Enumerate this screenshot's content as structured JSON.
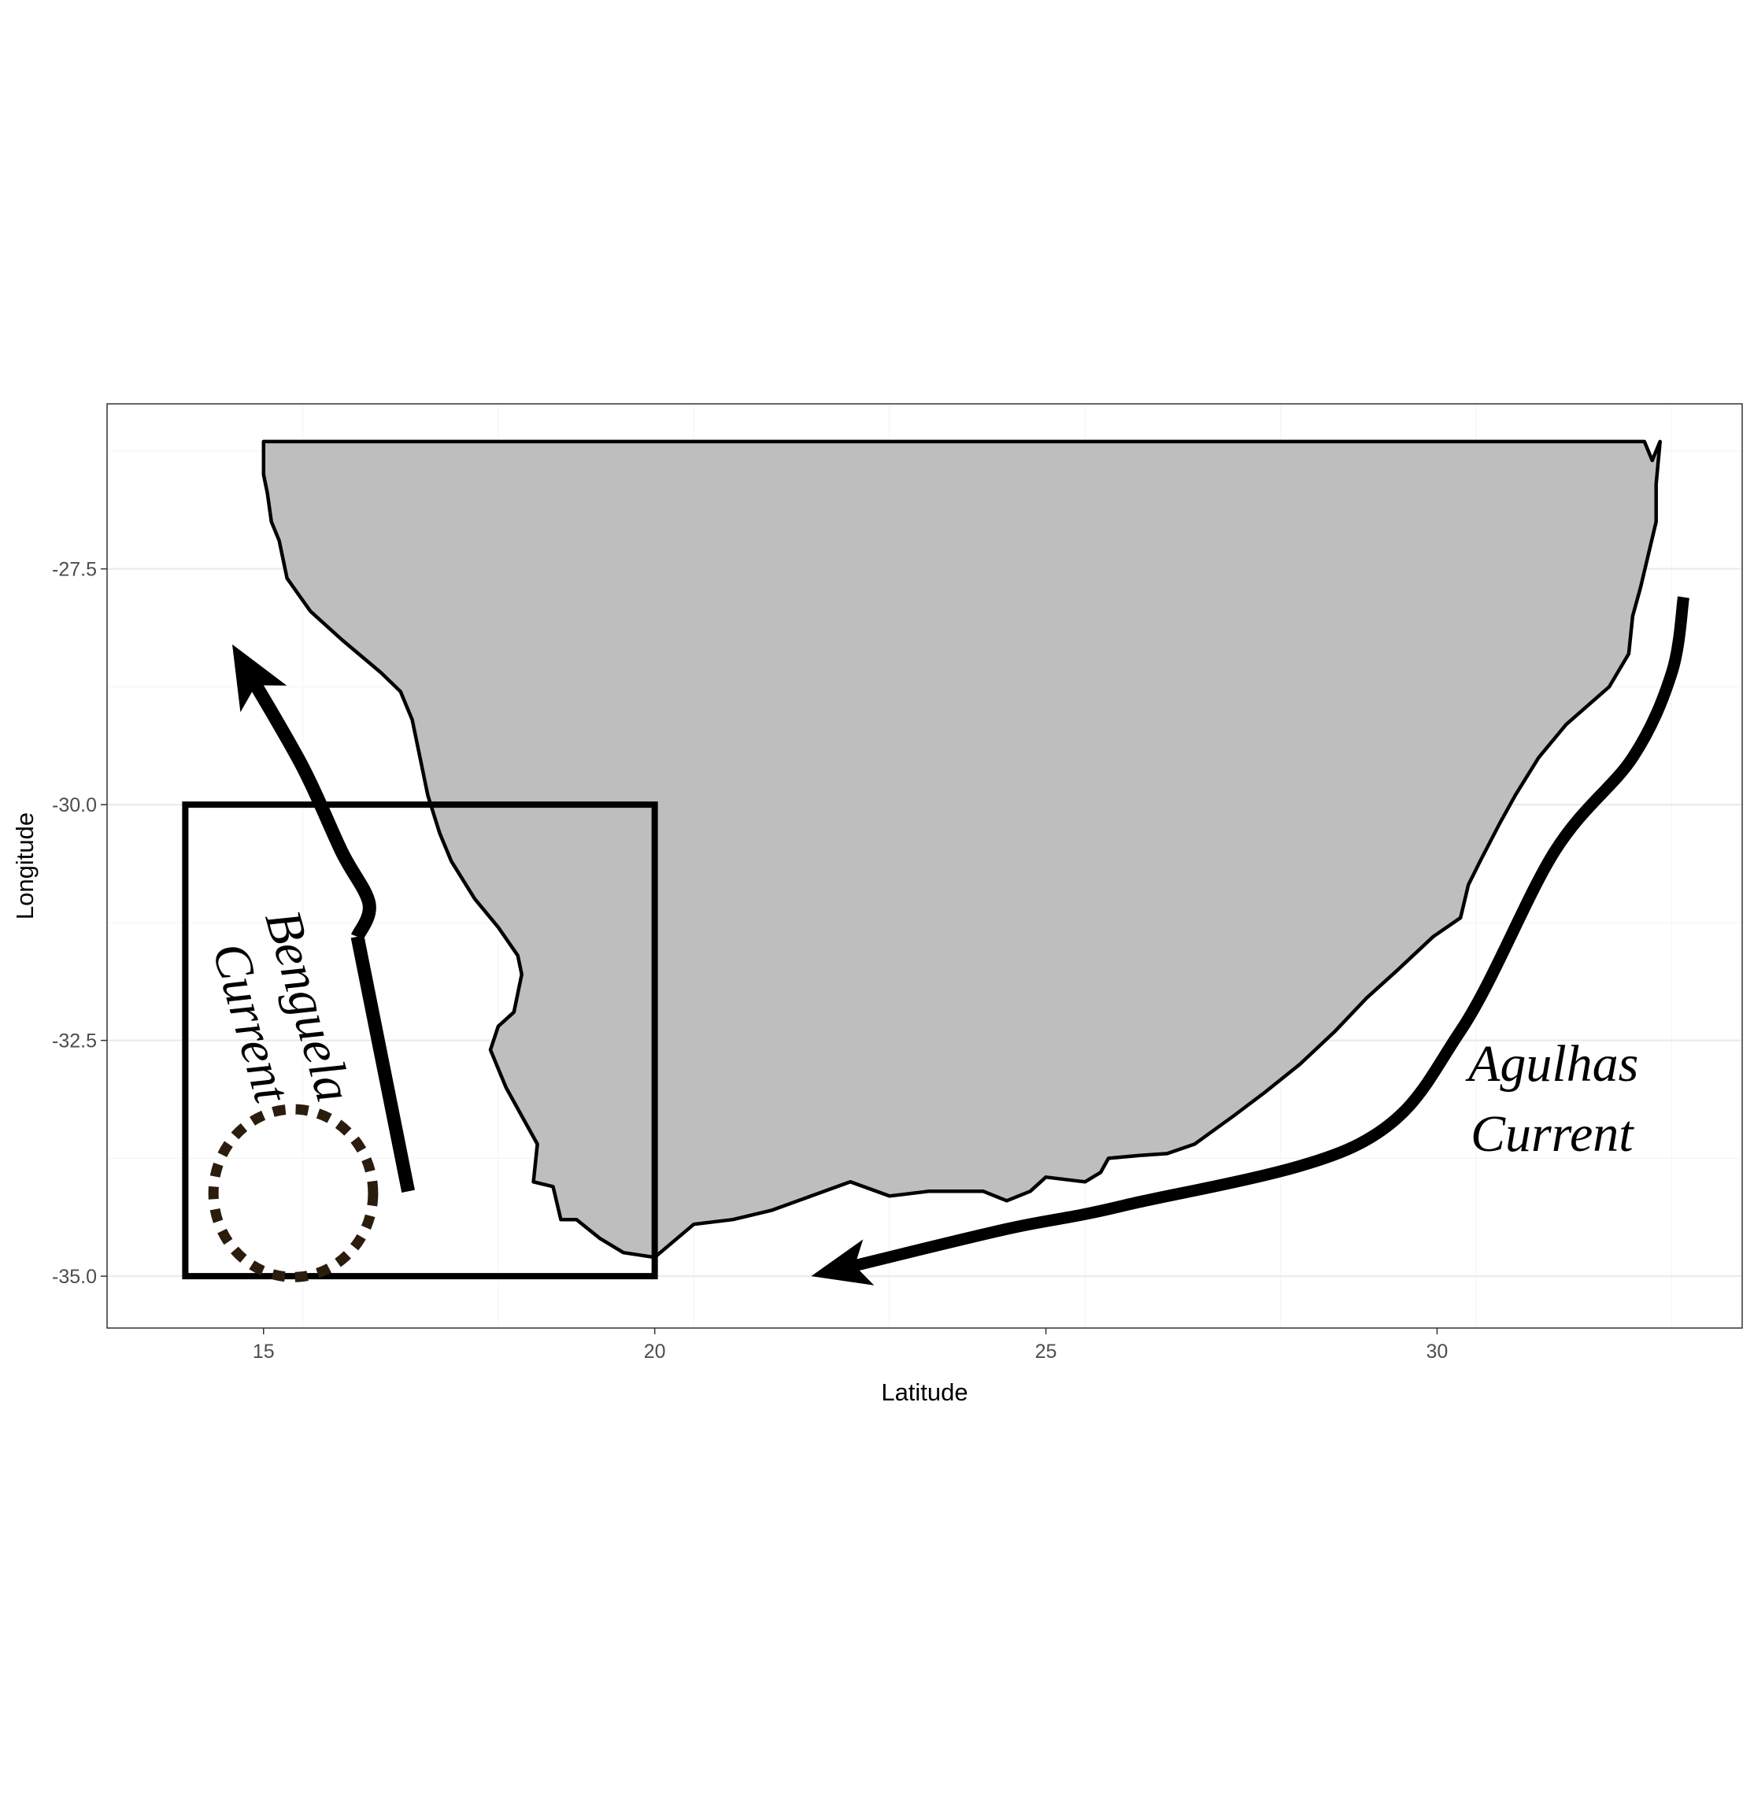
{
  "chart_data": {
    "type": "map",
    "xlabel": "Latitude",
    "ylabel": "Longitude",
    "xlim": [
      13.0,
      33.9
    ],
    "ylim": [
      -35.55,
      -25.75
    ],
    "x_ticks": [
      15,
      20,
      25,
      30
    ],
    "x_tick_labels": [
      "15",
      "20",
      "25",
      "30"
    ],
    "y_ticks": [
      -27.5,
      -30.0,
      -32.5,
      -35.0
    ],
    "y_tick_labels": [
      "-27.5",
      "-30.0",
      "-32.5",
      "-35.0"
    ],
    "grid": true,
    "land_color": "#bebebe",
    "study_area": {
      "x_range": [
        14,
        20
      ],
      "y_range": [
        -35.0,
        -30.0
      ]
    },
    "labels": {
      "benguela_line1": "Benguela",
      "benguela_line2": "Current",
      "agulhas_line1": "Agulhas",
      "agulhas_line2": "Current"
    },
    "circle_color": "#2b1d0e",
    "coastline": [
      [
        15.0,
        -26.15
      ],
      [
        32.65,
        -26.15
      ],
      [
        32.75,
        -26.35
      ],
      [
        32.85,
        -26.15
      ],
      [
        32.8,
        -26.6
      ],
      [
        32.8,
        -27.0
      ],
      [
        32.6,
        -27.7
      ],
      [
        32.5,
        -28.0
      ],
      [
        32.45,
        -28.4
      ],
      [
        32.2,
        -28.75
      ],
      [
        31.65,
        -29.15
      ],
      [
        31.3,
        -29.5
      ],
      [
        31.0,
        -29.9
      ],
      [
        30.8,
        -30.2
      ],
      [
        30.55,
        -30.6
      ],
      [
        30.4,
        -30.85
      ],
      [
        30.3,
        -31.2
      ],
      [
        29.95,
        -31.4
      ],
      [
        29.5,
        -31.75
      ],
      [
        29.1,
        -32.05
      ],
      [
        28.7,
        -32.4
      ],
      [
        28.25,
        -32.75
      ],
      [
        27.8,
        -33.05
      ],
      [
        27.4,
        -33.3
      ],
      [
        26.9,
        -33.6
      ],
      [
        26.55,
        -33.7
      ],
      [
        26.2,
        -33.72
      ],
      [
        25.8,
        -33.75
      ],
      [
        25.7,
        -33.9
      ],
      [
        25.5,
        -34.0
      ],
      [
        25.0,
        -33.95
      ],
      [
        24.8,
        -34.1
      ],
      [
        24.5,
        -34.2
      ],
      [
        24.2,
        -34.1
      ],
      [
        23.5,
        -34.1
      ],
      [
        23.0,
        -34.15
      ],
      [
        22.5,
        -34.0
      ],
      [
        22.0,
        -34.15
      ],
      [
        21.5,
        -34.3
      ],
      [
        21.0,
        -34.4
      ],
      [
        20.5,
        -34.45
      ],
      [
        20.0,
        -34.8
      ],
      [
        19.6,
        -34.75
      ],
      [
        19.3,
        -34.6
      ],
      [
        19.0,
        -34.4
      ],
      [
        18.8,
        -34.4
      ],
      [
        18.7,
        -34.05
      ],
      [
        18.45,
        -34.0
      ],
      [
        18.5,
        -33.6
      ],
      [
        18.3,
        -33.3
      ],
      [
        18.1,
        -33.0
      ],
      [
        18.0,
        -32.8
      ],
      [
        17.9,
        -32.6
      ],
      [
        18.0,
        -32.35
      ],
      [
        18.2,
        -32.2
      ],
      [
        18.3,
        -31.8
      ],
      [
        18.25,
        -31.6
      ],
      [
        18.0,
        -31.3
      ],
      [
        17.7,
        -31.0
      ],
      [
        17.4,
        -30.6
      ],
      [
        17.25,
        -30.3
      ],
      [
        17.1,
        -29.9
      ],
      [
        17.0,
        -29.5
      ],
      [
        16.9,
        -29.1
      ],
      [
        16.75,
        -28.8
      ],
      [
        16.5,
        -28.6
      ],
      [
        16.0,
        -28.25
      ],
      [
        15.6,
        -27.95
      ],
      [
        15.3,
        -27.6
      ],
      [
        15.2,
        -27.2
      ],
      [
        15.1,
        -27.0
      ],
      [
        15.05,
        -26.7
      ],
      [
        15.0,
        -26.5
      ]
    ],
    "benguela_stem": [
      [
        16.85,
        -34.1
      ],
      [
        16.2,
        -31.4
      ]
    ],
    "benguela_arrow": [
      [
        16.2,
        -31.4
      ],
      [
        16.35,
        -31.05
      ],
      [
        16.0,
        -30.5
      ],
      [
        15.5,
        -29.6
      ],
      [
        14.6,
        -28.3
      ]
    ],
    "agulhas_arrow": [
      [
        33.15,
        -27.8
      ],
      [
        33.0,
        -28.6
      ],
      [
        32.5,
        -29.5
      ],
      [
        31.5,
        -30.5
      ],
      [
        30.3,
        -32.4
      ],
      [
        29.0,
        -33.6
      ],
      [
        26.0,
        -34.25
      ],
      [
        24.5,
        -34.5
      ],
      [
        22.0,
        -35.0
      ]
    ]
  }
}
